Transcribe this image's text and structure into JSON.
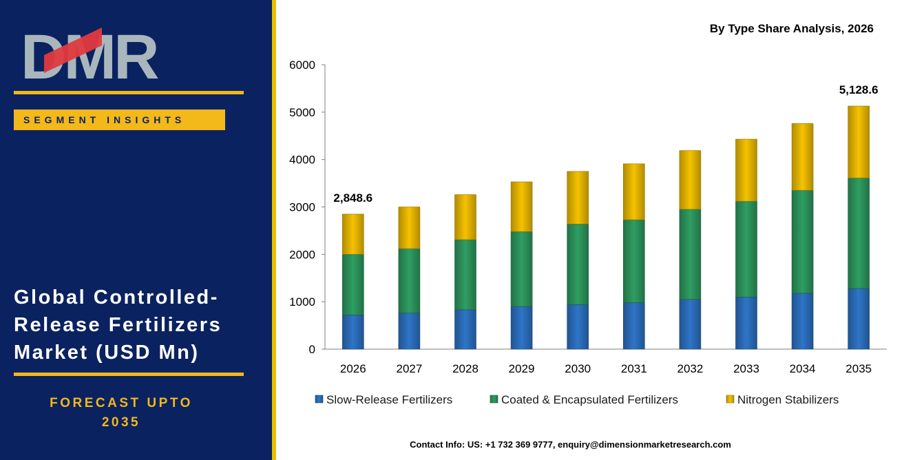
{
  "brand": {
    "logo_text": "DMR",
    "segment_label": "SEGMENT INSIGHTS"
  },
  "market": {
    "title_lines": [
      "Global Controlled-",
      "Release Fertilizers",
      "Market (USD Mn)"
    ],
    "forecast_line1": "FORECAST UPTO",
    "forecast_line2": "2035"
  },
  "contact": "Contact Info: US: +1 732 369 9777, enquiry@dimensionmarketresearch.com",
  "colors": {
    "panel_bg": "#0b2260",
    "accent_gold": "#f3b81a",
    "logo_red": "#e03a3e",
    "logo_gray": "#a9b7bd"
  },
  "chart_data": {
    "type": "bar",
    "stacked": true,
    "title": "By Type Share Analysis, 2026",
    "categories": [
      "2026",
      "2027",
      "2028",
      "2029",
      "2030",
      "2031",
      "2032",
      "2033",
      "2034",
      "2035"
    ],
    "series": [
      {
        "name": "Slow-Release Fertilizers",
        "color": "#2e75c8",
        "values": [
          720,
          760,
          830,
          900,
          940,
          980,
          1050,
          1100,
          1180,
          1280
        ]
      },
      {
        "name": "Coated & Encapsulated Fertilizers",
        "color": "#2f9e62",
        "values": [
          1280,
          1360,
          1480,
          1580,
          1700,
          1750,
          1900,
          2020,
          2170,
          2330
        ]
      },
      {
        "name": "Nitrogen Stabilizers",
        "color": "#f6c200",
        "values": [
          848.6,
          880,
          950,
          1050,
          1110,
          1180,
          1240,
          1310,
          1410,
          1518.6
        ]
      }
    ],
    "data_labels": [
      {
        "category": "2026",
        "text": "2,848.6"
      },
      {
        "category": "2035",
        "text": "5,128.6"
      }
    ],
    "ylim": [
      0,
      6000
    ],
    "yticks": [
      0,
      1000,
      2000,
      3000,
      4000,
      5000,
      6000
    ],
    "legend": "bottom",
    "grid": false
  }
}
